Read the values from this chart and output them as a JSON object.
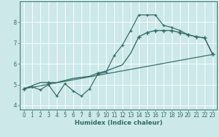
{
  "title": "",
  "xlabel": "Humidex (Indice chaleur)",
  "ylabel": "",
  "bg_color": "#cce8e8",
  "grid_color": "#ffffff",
  "line_color": "#2e6b65",
  "xlim": [
    -0.5,
    23.5
  ],
  "ylim": [
    3.8,
    9.0
  ],
  "xticks": [
    0,
    1,
    2,
    3,
    4,
    5,
    6,
    7,
    8,
    9,
    10,
    11,
    12,
    13,
    14,
    15,
    16,
    17,
    18,
    19,
    20,
    21,
    22,
    23
  ],
  "yticks": [
    4,
    5,
    6,
    7,
    8
  ],
  "line1_x": [
    0,
    1,
    2,
    3,
    4,
    5,
    6,
    7,
    8,
    9,
    10,
    11,
    12,
    13,
    14,
    15,
    16,
    17,
    18,
    19,
    20,
    21,
    22,
    23
  ],
  "line1_y": [
    4.8,
    4.9,
    4.75,
    5.0,
    4.45,
    5.05,
    4.7,
    4.45,
    4.8,
    5.5,
    5.6,
    6.4,
    6.9,
    7.6,
    8.35,
    8.35,
    8.35,
    7.85,
    7.75,
    7.6,
    7.4,
    7.3,
    7.25,
    6.45
  ],
  "line2_x": [
    0,
    1,
    2,
    3,
    4,
    5,
    6,
    7,
    8,
    9,
    10,
    11,
    12,
    13,
    14,
    15,
    16,
    17,
    18,
    19,
    20,
    21,
    22,
    23
  ],
  "line2_y": [
    4.8,
    4.95,
    5.1,
    5.1,
    5.1,
    5.2,
    5.3,
    5.35,
    5.4,
    5.55,
    5.65,
    5.8,
    5.95,
    6.5,
    7.3,
    7.5,
    7.6,
    7.6,
    7.6,
    7.5,
    7.4,
    7.3,
    7.25,
    6.45
  ],
  "line3_x": [
    0,
    23
  ],
  "line3_y": [
    4.8,
    6.45
  ],
  "line2_markers_x": [
    0,
    3,
    9,
    14,
    15,
    16,
    17,
    18,
    19,
    20,
    21,
    22,
    23
  ],
  "line2_markers_y": [
    4.8,
    5.1,
    5.55,
    7.3,
    7.5,
    7.6,
    7.6,
    7.6,
    7.5,
    7.4,
    7.3,
    7.25,
    6.45
  ]
}
